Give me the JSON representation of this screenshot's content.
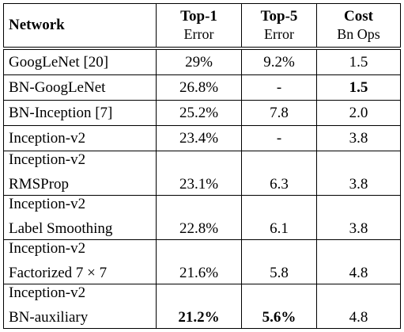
{
  "table": {
    "header": [
      [
        "Network"
      ],
      [
        "Top-1",
        "Error"
      ],
      [
        "Top-5",
        "Error"
      ],
      [
        "Cost",
        "Bn Ops"
      ]
    ],
    "rows": [
      [
        [
          "GoogLeNet [20]"
        ],
        "29%",
        "9.2%",
        "1.5"
      ],
      [
        [
          "BN-GoogLeNet"
        ],
        "26.8%",
        "-",
        "1.5"
      ],
      [
        [
          "BN-Inception [7]"
        ],
        "25.2%",
        "7.8",
        "2.0"
      ],
      [
        [
          "Inception-v2"
        ],
        "23.4%",
        "-",
        "3.8"
      ],
      [
        [
          "Inception-v2",
          "RMSProp"
        ],
        "23.1%",
        "6.3",
        "3.8"
      ],
      [
        [
          "Inception-v2",
          "Label Smoothing"
        ],
        "22.8%",
        "6.1",
        "3.8"
      ],
      [
        [
          "Inception-v2",
          "Factorized 7 × 7"
        ],
        "21.6%",
        "5.8",
        "4.8"
      ],
      [
        [
          "Inception-v2",
          "BN-auxiliary"
        ],
        "21.2%",
        "5.6%",
        "4.8"
      ]
    ]
  }
}
